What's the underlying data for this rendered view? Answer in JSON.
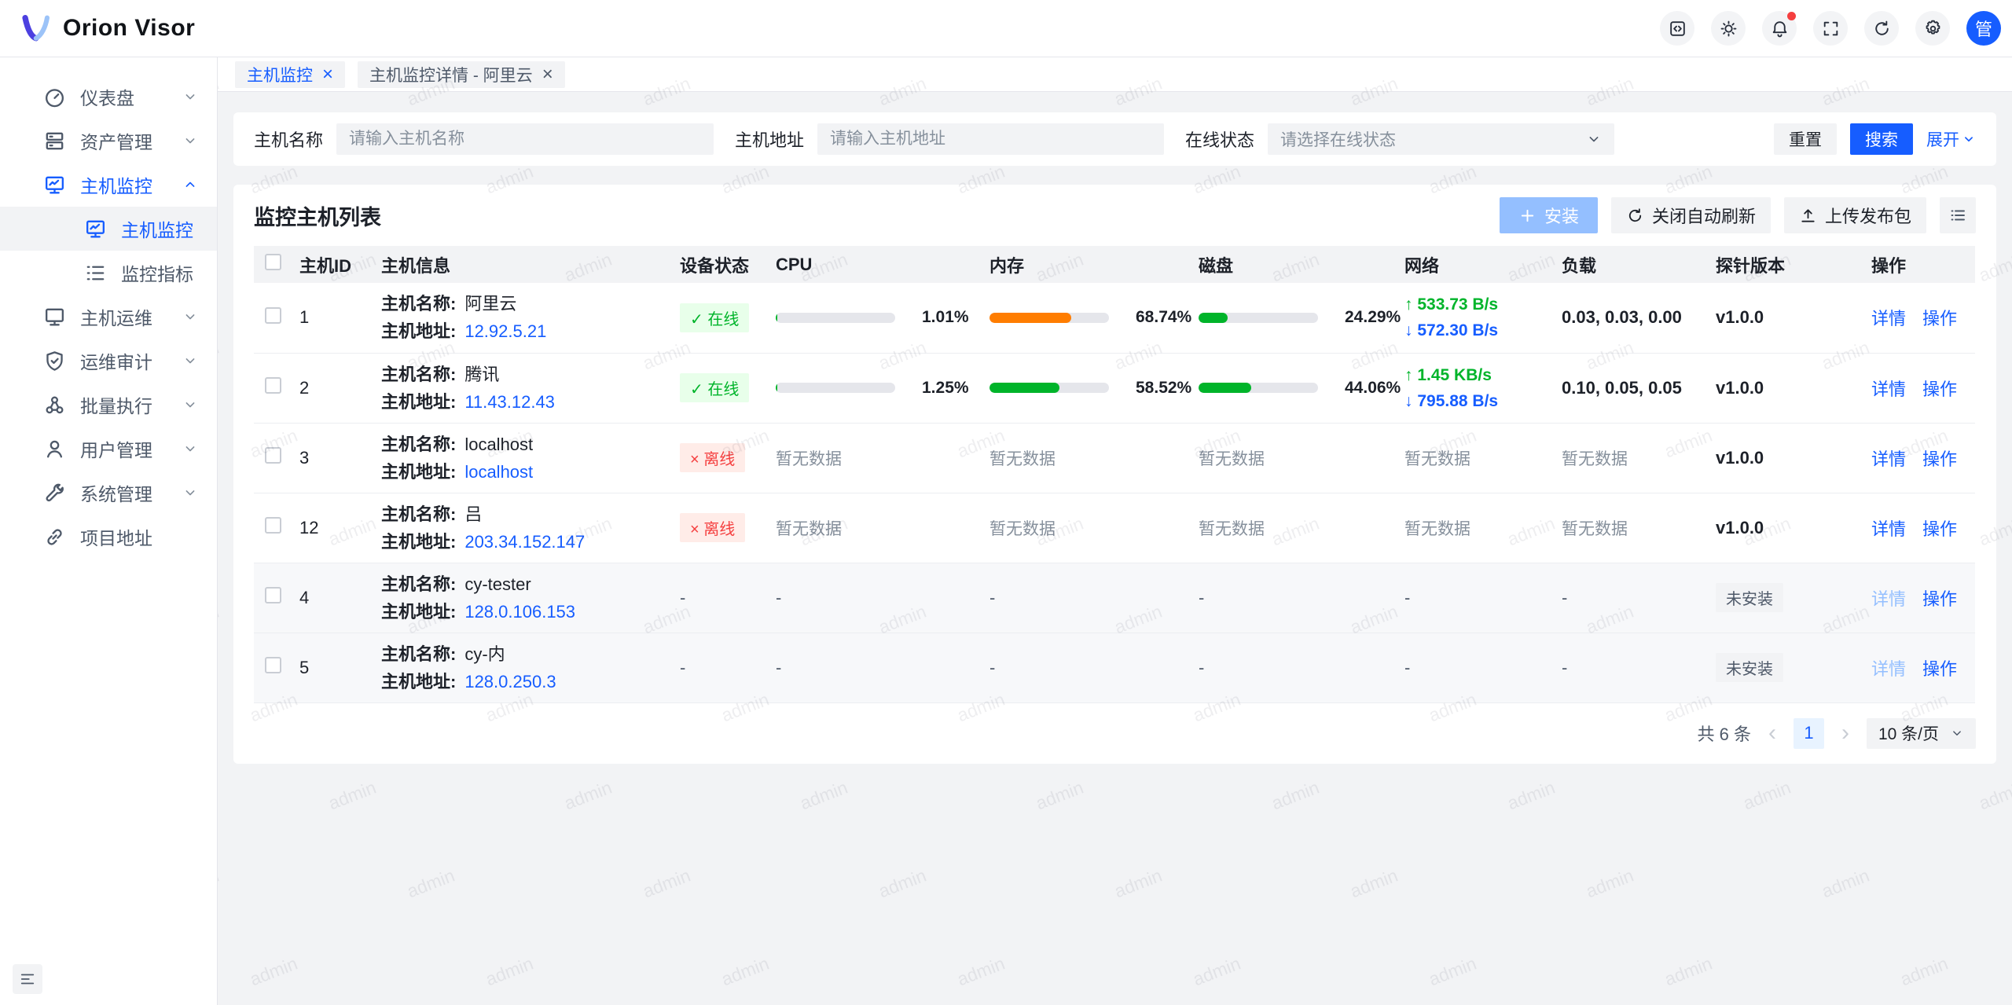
{
  "app": {
    "logo_title": "Orion Visor"
  },
  "header": {
    "buttons": [
      {
        "name": "api-code-button",
        "icon": "code",
        "badge": false
      },
      {
        "name": "theme-toggle-button",
        "icon": "sun",
        "badge": false
      },
      {
        "name": "notifications-button",
        "icon": "bell",
        "badge": true
      },
      {
        "name": "fullscreen-button",
        "icon": "fullscreen",
        "badge": false
      },
      {
        "name": "refresh-button",
        "icon": "refresh",
        "badge": false
      },
      {
        "name": "settings-button",
        "icon": "gear",
        "badge": false
      }
    ],
    "avatar_text": "管"
  },
  "sidebar": {
    "items": [
      {
        "label": "仪表盘",
        "icon": "dashboard",
        "level": 1,
        "chevron": "down",
        "active": false,
        "selected": false
      },
      {
        "label": "资产管理",
        "icon": "assets",
        "level": 1,
        "chevron": "down",
        "active": false,
        "selected": false
      },
      {
        "label": "主机监控",
        "icon": "monitor-chart",
        "level": 1,
        "chevron": "up",
        "active": true,
        "selected": false
      },
      {
        "label": "主机监控",
        "icon": "monitor-chart",
        "level": 2,
        "chevron": null,
        "active": true,
        "selected": true
      },
      {
        "label": "监控指标",
        "icon": "list",
        "level": 2,
        "chevron": null,
        "active": false,
        "selected": false
      },
      {
        "label": "主机运维",
        "icon": "monitor",
        "level": 1,
        "chevron": "down",
        "active": false,
        "selected": false
      },
      {
        "label": "运维审计",
        "icon": "shield",
        "level": 1,
        "chevron": "down",
        "active": false,
        "selected": false
      },
      {
        "label": "批量执行",
        "icon": "cluster",
        "level": 1,
        "chevron": "down",
        "active": false,
        "selected": false
      },
      {
        "label": "用户管理",
        "icon": "user",
        "level": 1,
        "chevron": "down",
        "active": false,
        "selected": false
      },
      {
        "label": "系统管理",
        "icon": "wrench",
        "level": 1,
        "chevron": "down",
        "active": false,
        "selected": false
      },
      {
        "label": "项目地址",
        "icon": "link",
        "level": 1,
        "chevron": null,
        "active": false,
        "selected": false
      }
    ]
  },
  "tabs": [
    {
      "label": "主机监控",
      "active": true
    },
    {
      "label": "主机监控详情 - 阿里云",
      "active": false
    }
  ],
  "filter": {
    "name_label": "主机名称",
    "name_placeholder": "请输入主机名称",
    "addr_label": "主机地址",
    "addr_placeholder": "请输入主机地址",
    "status_label": "在线状态",
    "status_placeholder": "请选择在线状态",
    "reset": "重置",
    "search": "搜索",
    "expand": "展开"
  },
  "table": {
    "title": "监控主机列表",
    "install": "安装",
    "auto_refresh": "关闭自动刷新",
    "upload": "上传发布包",
    "columns": [
      "主机ID",
      "主机信息",
      "设备状态",
      "CPU",
      "内存",
      "磁盘",
      "网络",
      "负载",
      "探针版本",
      "操作"
    ],
    "name_label": "主机名称:",
    "addr_label": "主机地址:",
    "no_data": "暂无数据",
    "online_label": "在线",
    "offline_label": "离线",
    "not_installed_label": "未安装",
    "detail_label": "详情",
    "more_label": "操作",
    "rows": [
      {
        "id": "1",
        "name": "阿里云",
        "addr": "12.92.5.21",
        "status": {
          "type": "online"
        },
        "cpu": {
          "type": "bar",
          "pct": 1.01,
          "label": "1.01%",
          "color": "#00b42a"
        },
        "mem": {
          "type": "bar",
          "pct": 68.74,
          "label": "68.74%",
          "color": "#ff7d00"
        },
        "disk": {
          "type": "bar",
          "pct": 24.29,
          "label": "24.29%",
          "color": "#00b42a"
        },
        "net": {
          "type": "updown",
          "up": "533.73 B/s",
          "down": "572.30 B/s"
        },
        "load": {
          "type": "strong",
          "label": "0.03, 0.03, 0.00"
        },
        "version": {
          "type": "strong",
          "label": "v1.0.0"
        },
        "detail_enabled": true,
        "muted": false
      },
      {
        "id": "2",
        "name": "腾讯",
        "addr": "11.43.12.43",
        "status": {
          "type": "online"
        },
        "cpu": {
          "type": "bar",
          "pct": 1.25,
          "label": "1.25%",
          "color": "#00b42a"
        },
        "mem": {
          "type": "bar",
          "pct": 58.52,
          "label": "58.52%",
          "color": "#00b42a"
        },
        "disk": {
          "type": "bar",
          "pct": 44.06,
          "label": "44.06%",
          "color": "#00b42a"
        },
        "net": {
          "type": "updown",
          "up": "1.45 KB/s",
          "down": "795.88 B/s"
        },
        "load": {
          "type": "strong",
          "label": "0.10, 0.05, 0.05"
        },
        "version": {
          "type": "strong",
          "label": "v1.0.0"
        },
        "detail_enabled": true,
        "muted": false
      },
      {
        "id": "3",
        "name": "localhost",
        "addr": "localhost",
        "status": {
          "type": "offline"
        },
        "cpu": {
          "type": "nodata"
        },
        "mem": {
          "type": "nodata"
        },
        "disk": {
          "type": "nodata"
        },
        "net": {
          "type": "nodata"
        },
        "load": {
          "type": "nodata"
        },
        "version": {
          "type": "strong",
          "label": "v1.0.0"
        },
        "detail_enabled": true,
        "muted": false
      },
      {
        "id": "12",
        "name": "吕",
        "addr": "203.34.152.147",
        "status": {
          "type": "offline"
        },
        "cpu": {
          "type": "nodata"
        },
        "mem": {
          "type": "nodata"
        },
        "disk": {
          "type": "nodata"
        },
        "net": {
          "type": "nodata"
        },
        "load": {
          "type": "nodata"
        },
        "version": {
          "type": "strong",
          "label": "v1.0.0"
        },
        "detail_enabled": true,
        "muted": false
      },
      {
        "id": "4",
        "name": "cy-tester",
        "addr": "128.0.106.153",
        "status": {
          "type": "dash"
        },
        "cpu": {
          "type": "dash"
        },
        "mem": {
          "type": "dash"
        },
        "disk": {
          "type": "dash"
        },
        "net": {
          "type": "dash"
        },
        "load": {
          "type": "dash"
        },
        "version": {
          "type": "badge"
        },
        "detail_enabled": false,
        "muted": true
      },
      {
        "id": "5",
        "name": "cy-内",
        "addr": "128.0.250.3",
        "status": {
          "type": "dash"
        },
        "cpu": {
          "type": "dash"
        },
        "mem": {
          "type": "dash"
        },
        "disk": {
          "type": "dash"
        },
        "net": {
          "type": "dash"
        },
        "load": {
          "type": "dash"
        },
        "version": {
          "type": "badge"
        },
        "detail_enabled": false,
        "muted": true
      }
    ]
  },
  "pagination": {
    "total": "共 6 条",
    "page": "1",
    "page_size": "10 条/页",
    "prev": "‹",
    "next": "›"
  },
  "watermark": "admin",
  "colors": {
    "primary": "#165dff",
    "green": "#00b42a",
    "red": "#f53f3f",
    "orange": "#ff7d00"
  }
}
